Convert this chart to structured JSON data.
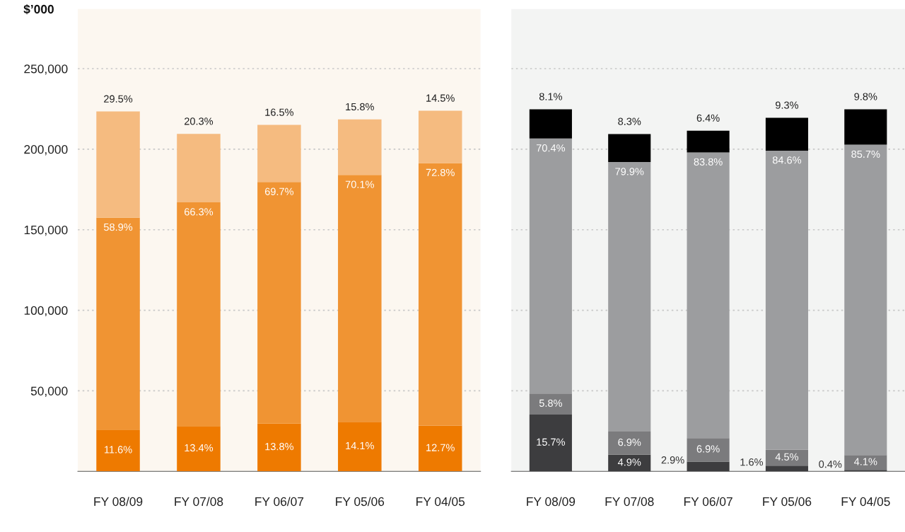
{
  "chart_data": [
    {
      "type": "bar",
      "stacked": true,
      "ylabel": "$’000",
      "categories": [
        "FY 08/09",
        "FY 07/08",
        "FY 06/07",
        "FY 05/06",
        "FY 04/05"
      ],
      "series": [
        {
          "color": "#ee7a00",
          "values": [
            25900,
            28100,
            29700,
            30800,
            28400
          ]
        },
        {
          "color": "#f09433",
          "values": [
            131600,
            138900,
            149900,
            153200,
            163000
          ]
        },
        {
          "color": "#f5bb80",
          "values": [
            65900,
            42500,
            35500,
            34500,
            32500
          ]
        }
      ],
      "annotations": [
        {
          "text": "11.6%",
          "x": "FY 08/09",
          "y": 25900
        },
        {
          "text": "13.4%",
          "x": "FY 07/08",
          "y": 28100
        },
        {
          "text": "13.8%",
          "x": "FY 06/07",
          "y": 29700
        },
        {
          "text": "14.1%",
          "x": "FY 05/06",
          "y": 30800
        },
        {
          "text": "12.7%",
          "x": "FY 04/05",
          "y": 28400
        },
        {
          "text": "58.9%",
          "x": "FY 08/09",
          "y": 157500
        },
        {
          "text": "66.3%",
          "x": "FY 07/08",
          "y": 167000
        },
        {
          "text": "69.7%",
          "x": "FY 06/07",
          "y": 179600
        },
        {
          "text": "70.1%",
          "x": "FY 05/06",
          "y": 184000
        },
        {
          "text": "72.8%",
          "x": "FY 04/05",
          "y": 191400
        },
        {
          "text": "29.5%",
          "x": "FY 08/09",
          "y": 223400
        },
        {
          "text": "20.3%",
          "x": "FY 07/08",
          "y": 209500
        },
        {
          "text": "16.5%",
          "x": "FY 06/07",
          "y": 215100
        },
        {
          "text": "15.8%",
          "x": "FY 05/06",
          "y": 218500
        },
        {
          "text": "14.5%",
          "x": "FY 04/05",
          "y": 223900
        }
      ],
      "ylim": [
        0,
        287000
      ],
      "yticks": [
        {
          "value": 50000,
          "label": "50,000"
        },
        {
          "value": 100000,
          "label": "100,000"
        },
        {
          "value": 150000,
          "label": "150,000"
        },
        {
          "value": 200000,
          "label": "200,000"
        },
        {
          "value": 250000,
          "label": "250,000"
        }
      ],
      "grid": "y"
    },
    {
      "type": "bar",
      "stacked": true,
      "categories": [
        "FY 08/09",
        "FY 07/08",
        "FY 06/07",
        "FY 05/06",
        "FY 04/05"
      ],
      "series": [
        {
          "color": "#3d3d3f",
          "values": [
            35300,
            10300,
            6100,
            3500,
            900
          ]
        },
        {
          "color": "#7b7b7d",
          "values": [
            13000,
            14400,
            14600,
            9900,
            9200
          ]
        },
        {
          "color": "#9c9d9f",
          "values": [
            158300,
            167300,
            177300,
            185700,
            192700
          ]
        },
        {
          "color": "#000000",
          "values": [
            18200,
            17400,
            13500,
            20400,
            22000
          ]
        }
      ],
      "annotations": [
        {
          "text": "15.7%",
          "x": "FY 08/09",
          "y": 35300
        },
        {
          "text": "4.9%",
          "x": "FY 07/08",
          "y": 10300
        },
        {
          "text": "2.9%",
          "x": "FY 06/07",
          "y": 6100
        },
        {
          "text": "1.6%",
          "x": "FY 05/06",
          "y": 3500
        },
        {
          "text": "0.4%",
          "x": "FY 04/05",
          "y": 900
        },
        {
          "text": "5.8%",
          "x": "FY 08/09",
          "y": 48300
        },
        {
          "text": "6.9%",
          "x": "FY 07/08",
          "y": 24700
        },
        {
          "text": "6.9%",
          "x": "FY 06/07",
          "y": 20700
        },
        {
          "text": "4.5%",
          "x": "FY 05/06",
          "y": 13400
        },
        {
          "text": "4.1%",
          "x": "FY 04/05",
          "y": 10100
        },
        {
          "text": "70.4%",
          "x": "FY 08/09",
          "y": 206600
        },
        {
          "text": "79.9%",
          "x": "FY 07/08",
          "y": 192000
        },
        {
          "text": "83.8%",
          "x": "FY 06/07",
          "y": 198000
        },
        {
          "text": "84.6%",
          "x": "FY 05/06",
          "y": 199100
        },
        {
          "text": "85.7%",
          "x": "FY 04/05",
          "y": 202800
        },
        {
          "text": "8.1%",
          "x": "FY 08/09",
          "y": 224800
        },
        {
          "text": "8.3%",
          "x": "FY 07/08",
          "y": 209400
        },
        {
          "text": "6.4%",
          "x": "FY 06/07",
          "y": 211500
        },
        {
          "text": "9.3%",
          "x": "FY 05/06",
          "y": 219500
        },
        {
          "text": "9.8%",
          "x": "FY 04/05",
          "y": 224800
        }
      ],
      "ylim": [
        0,
        287000
      ],
      "yticks": [
        50000,
        100000,
        150000,
        200000,
        250000
      ],
      "tick_labels": "x",
      "grid": "y"
    }
  ]
}
